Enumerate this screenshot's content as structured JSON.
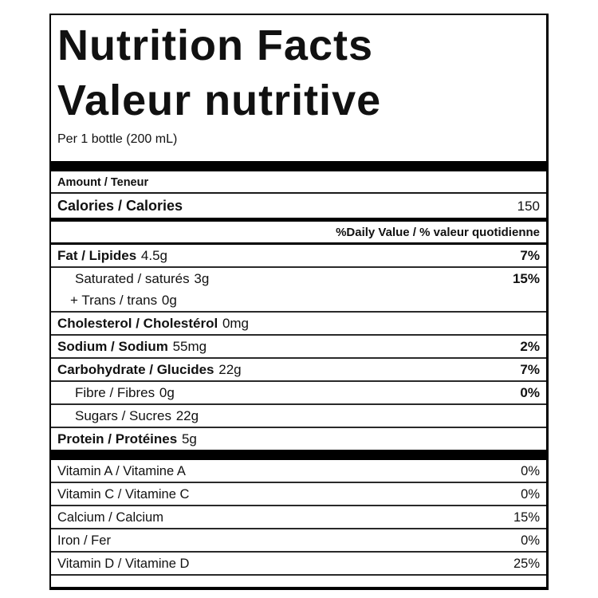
{
  "label": {
    "title_en": "Nutrition Facts",
    "title_fr": "Valeur nutritive",
    "serving": "Per 1 bottle (200 mL)",
    "amount_header": "Amount / Teneur",
    "calories": {
      "name": "Calories / Calories",
      "value": "150"
    },
    "daily_value_header": "%Daily Value / % valeur quotidienne",
    "nutrients": [
      {
        "name": "Fat / Lipides",
        "amount": "4.5g",
        "dv": "7%"
      },
      {
        "name": "Saturated / saturés",
        "amount": "3g",
        "dv": "15%"
      },
      {
        "name": "+ Trans / trans",
        "amount": "0g",
        "dv": ""
      },
      {
        "name": "Cholesterol / Cholestérol",
        "amount": "0mg",
        "dv": ""
      },
      {
        "name": "Sodium / Sodium",
        "amount": "55mg",
        "dv": "2%"
      },
      {
        "name": "Carbohydrate / Glucides",
        "amount": "22g",
        "dv": "7%"
      },
      {
        "name": "Fibre / Fibres",
        "amount": "0g",
        "dv": "0%"
      },
      {
        "name": "Sugars / Sucres",
        "amount": "22g",
        "dv": ""
      },
      {
        "name": "Protein / Protéines",
        "amount": "5g",
        "dv": ""
      }
    ],
    "micronutrients": [
      {
        "name": "Vitamin A / Vitamine A",
        "dv": "0%"
      },
      {
        "name": "Vitamin C / Vitamine C",
        "dv": "0%"
      },
      {
        "name": "Calcium / Calcium",
        "dv": "15%"
      },
      {
        "name": "Iron / Fer",
        "dv": "0%"
      },
      {
        "name": "Vitamin D / Vitamine D",
        "dv": "25%"
      }
    ],
    "colors": {
      "text": "#111111",
      "bar": "#000000",
      "border": "#000000",
      "background": "#ffffff"
    }
  }
}
